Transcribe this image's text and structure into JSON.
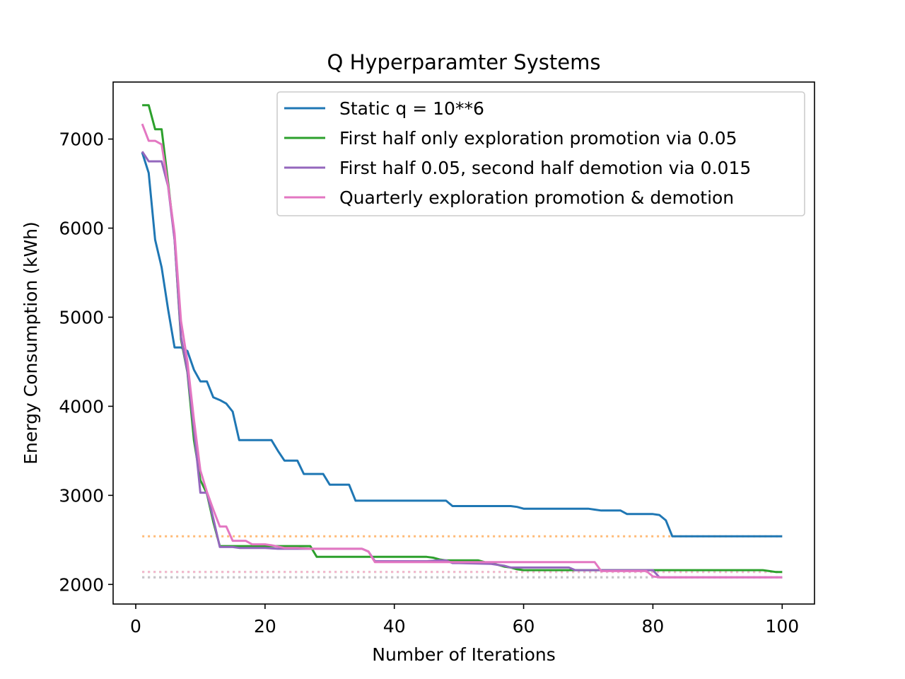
{
  "chart_data": {
    "type": "line",
    "title": "Q Hyperparamter Systems",
    "xlabel": "Number of Iterations",
    "ylabel": "Energy Consumption (kWh)",
    "xlim": [
      -3.5,
      105
    ],
    "ylim": [
      1780,
      7640
    ],
    "xticks": [
      0,
      20,
      40,
      60,
      80,
      100
    ],
    "yticks": [
      2000,
      3000,
      4000,
      5000,
      6000,
      7000
    ],
    "grid": false,
    "legend_position": "upper-right",
    "series": [
      {
        "name": "Static q = 10**6",
        "color": "#1f77b4",
        "points": [
          [
            1,
            6850
          ],
          [
            2,
            6620
          ],
          [
            3,
            5870
          ],
          [
            4,
            5560
          ],
          [
            5,
            5090
          ],
          [
            6,
            4660
          ],
          [
            7,
            4660
          ],
          [
            8,
            4620
          ],
          [
            9,
            4410
          ],
          [
            10,
            4280
          ],
          [
            11,
            4280
          ],
          [
            12,
            4100
          ],
          [
            13,
            4070
          ],
          [
            14,
            4030
          ],
          [
            15,
            3940
          ],
          [
            16,
            3620
          ],
          [
            17,
            3620
          ],
          [
            18,
            3620
          ],
          [
            19,
            3620
          ],
          [
            20,
            3620
          ],
          [
            21,
            3620
          ],
          [
            22,
            3500
          ],
          [
            23,
            3390
          ],
          [
            24,
            3390
          ],
          [
            25,
            3390
          ],
          [
            26,
            3240
          ],
          [
            27,
            3240
          ],
          [
            28,
            3240
          ],
          [
            29,
            3240
          ],
          [
            30,
            3120
          ],
          [
            31,
            3120
          ],
          [
            32,
            3120
          ],
          [
            33,
            3120
          ],
          [
            34,
            2940
          ],
          [
            35,
            2940
          ],
          [
            40,
            2940
          ],
          [
            47,
            2940
          ],
          [
            48,
            2940
          ],
          [
            49,
            2880
          ],
          [
            50,
            2880
          ],
          [
            58,
            2880
          ],
          [
            59,
            2870
          ],
          [
            60,
            2850
          ],
          [
            65,
            2850
          ],
          [
            70,
            2850
          ],
          [
            71,
            2840
          ],
          [
            72,
            2830
          ],
          [
            75,
            2830
          ],
          [
            76,
            2790
          ],
          [
            77,
            2790
          ],
          [
            80,
            2790
          ],
          [
            81,
            2780
          ],
          [
            82,
            2720
          ],
          [
            83,
            2540
          ],
          [
            90,
            2540
          ],
          [
            100,
            2540
          ]
        ]
      },
      {
        "name": "First half only exploration promotion via 0.05",
        "color": "#2ca02c",
        "points": [
          [
            1,
            7380
          ],
          [
            2,
            7380
          ],
          [
            3,
            7110
          ],
          [
            4,
            7110
          ],
          [
            5,
            6520
          ],
          [
            6,
            5880
          ],
          [
            7,
            4750
          ],
          [
            8,
            4380
          ],
          [
            9,
            3620
          ],
          [
            10,
            3170
          ],
          [
            11,
            3020
          ],
          [
            12,
            2700
          ],
          [
            13,
            2430
          ],
          [
            14,
            2430
          ],
          [
            15,
            2430
          ],
          [
            16,
            2430
          ],
          [
            20,
            2430
          ],
          [
            25,
            2430
          ],
          [
            27,
            2430
          ],
          [
            28,
            2310
          ],
          [
            29,
            2310
          ],
          [
            30,
            2310
          ],
          [
            35,
            2310
          ],
          [
            40,
            2310
          ],
          [
            45,
            2310
          ],
          [
            46,
            2300
          ],
          [
            47,
            2280
          ],
          [
            48,
            2270
          ],
          [
            50,
            2270
          ],
          [
            53,
            2270
          ],
          [
            54,
            2250
          ],
          [
            55,
            2240
          ],
          [
            56,
            2220
          ],
          [
            57,
            2200
          ],
          [
            58,
            2190
          ],
          [
            59,
            2170
          ],
          [
            60,
            2160
          ],
          [
            70,
            2160
          ],
          [
            80,
            2160
          ],
          [
            90,
            2160
          ],
          [
            95,
            2160
          ],
          [
            97,
            2160
          ],
          [
            98,
            2150
          ],
          [
            99,
            2140
          ],
          [
            100,
            2140
          ]
        ]
      },
      {
        "name": "First half 0.05, second half demotion via 0.015",
        "color": "#9467bd",
        "points": [
          [
            1,
            6860
          ],
          [
            2,
            6750
          ],
          [
            3,
            6750
          ],
          [
            4,
            6750
          ],
          [
            5,
            6470
          ],
          [
            6,
            5870
          ],
          [
            7,
            4780
          ],
          [
            8,
            4390
          ],
          [
            9,
            3740
          ],
          [
            10,
            3030
          ],
          [
            11,
            3030
          ],
          [
            12,
            2740
          ],
          [
            13,
            2420
          ],
          [
            14,
            2420
          ],
          [
            15,
            2420
          ],
          [
            16,
            2410
          ],
          [
            20,
            2410
          ],
          [
            22,
            2400
          ],
          [
            25,
            2400
          ],
          [
            30,
            2400
          ],
          [
            35,
            2400
          ],
          [
            36,
            2370
          ],
          [
            37,
            2260
          ],
          [
            40,
            2260
          ],
          [
            45,
            2260
          ],
          [
            47,
            2270
          ],
          [
            48,
            2270
          ],
          [
            49,
            2240
          ],
          [
            50,
            2240
          ],
          [
            55,
            2230
          ],
          [
            56,
            2220
          ],
          [
            57,
            2210
          ],
          [
            58,
            2190
          ],
          [
            60,
            2190
          ],
          [
            65,
            2190
          ],
          [
            67,
            2190
          ],
          [
            68,
            2160
          ],
          [
            70,
            2160
          ],
          [
            75,
            2160
          ],
          [
            80,
            2160
          ],
          [
            81,
            2080
          ],
          [
            82,
            2080
          ],
          [
            90,
            2080
          ],
          [
            100,
            2080
          ]
        ]
      },
      {
        "name": "Quarterly exploration promotion & demotion",
        "color": "#e377c2",
        "points": [
          [
            1,
            7170
          ],
          [
            2,
            6980
          ],
          [
            3,
            6980
          ],
          [
            4,
            6940
          ],
          [
            5,
            6480
          ],
          [
            6,
            5940
          ],
          [
            7,
            4960
          ],
          [
            8,
            4500
          ],
          [
            9,
            3850
          ],
          [
            10,
            3280
          ],
          [
            11,
            3040
          ],
          [
            12,
            2840
          ],
          [
            13,
            2650
          ],
          [
            14,
            2650
          ],
          [
            15,
            2490
          ],
          [
            16,
            2490
          ],
          [
            17,
            2490
          ],
          [
            18,
            2450
          ],
          [
            20,
            2450
          ],
          [
            21,
            2440
          ],
          [
            23,
            2410
          ],
          [
            25,
            2410
          ],
          [
            27,
            2400
          ],
          [
            30,
            2400
          ],
          [
            35,
            2400
          ],
          [
            36,
            2370
          ],
          [
            37,
            2250
          ],
          [
            40,
            2250
          ],
          [
            45,
            2250
          ],
          [
            50,
            2250
          ],
          [
            55,
            2250
          ],
          [
            60,
            2250
          ],
          [
            65,
            2250
          ],
          [
            70,
            2250
          ],
          [
            71,
            2250
          ],
          [
            72,
            2150
          ],
          [
            75,
            2150
          ],
          [
            79,
            2150
          ],
          [
            80,
            2090
          ],
          [
            81,
            2080
          ],
          [
            85,
            2080
          ],
          [
            90,
            2080
          ],
          [
            100,
            2080
          ]
        ]
      }
    ],
    "reference_lines": [
      {
        "y": 2540,
        "color": "#ffbb78"
      },
      {
        "y": 2140,
        "color": "#98df8a"
      },
      {
        "y": 2140,
        "color": "#f7b6d2"
      },
      {
        "y": 2080,
        "color": "#c5b0d5"
      },
      {
        "y": 2080,
        "color": "#c7c7c7"
      }
    ],
    "reference_x_range": [
      1,
      100
    ]
  }
}
